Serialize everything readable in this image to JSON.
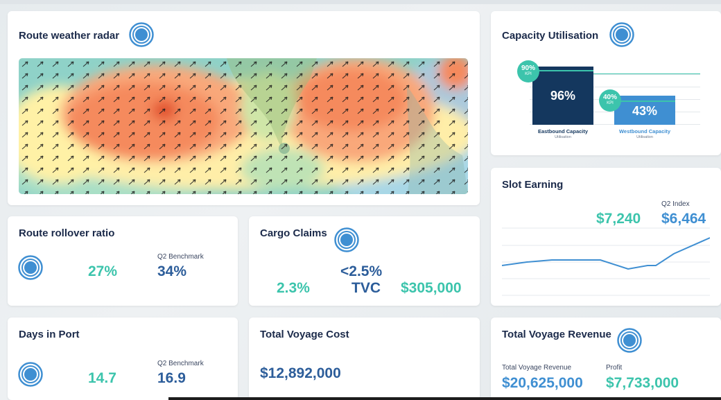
{
  "cards": {
    "weather": {
      "title": "Route weather radar",
      "icon": "target-icon"
    },
    "capacity": {
      "title": "Capacity Utilisation",
      "icon": "target-icon",
      "eastbound": {
        "value": "96%",
        "kpi": "90%",
        "kpi_label": "KPI",
        "label": "Eastbound Capacity",
        "sublabel": "Utilisation"
      },
      "westbound": {
        "value": "43%",
        "kpi": "40%",
        "kpi_label": "KPI",
        "label": "Westbound Capacity",
        "sublabel": "Utilisation"
      }
    },
    "slot": {
      "title": "Slot Earning",
      "index_label": "Q2 Index",
      "value": "$7,240",
      "index_value": "$6,464"
    },
    "rollover": {
      "title": "Route rollover ratio",
      "icon": "target-icon",
      "value": "27%",
      "benchmark_label": "Q2 Benchmark",
      "benchmark_value": "34%"
    },
    "claims": {
      "title": "Cargo Claims",
      "icon": "target-icon",
      "value": "2.3%",
      "target_value": "<2.5%",
      "target_label": "TVC",
      "amount": "$305,000"
    },
    "days": {
      "title": "Days in Port",
      "icon": "target-icon",
      "value": "14.7",
      "benchmark_label": "Q2 Benchmark",
      "benchmark_value": "16.9"
    },
    "cost": {
      "title": "Total Voyage Cost",
      "value": "$12,892,000"
    },
    "revenue": {
      "title": "Total Voyage Revenue",
      "icon": "target-icon",
      "revenue_label": "Total Voyage Revenue",
      "revenue_value": "$20,625,000",
      "profit_label": "Profit",
      "profit_value": "$7,733,000"
    }
  },
  "colors": {
    "teal": "#3cc4ac",
    "blue": "#3f8fd2",
    "navy": "#1b3a66",
    "title": "#1b2a4a"
  }
}
